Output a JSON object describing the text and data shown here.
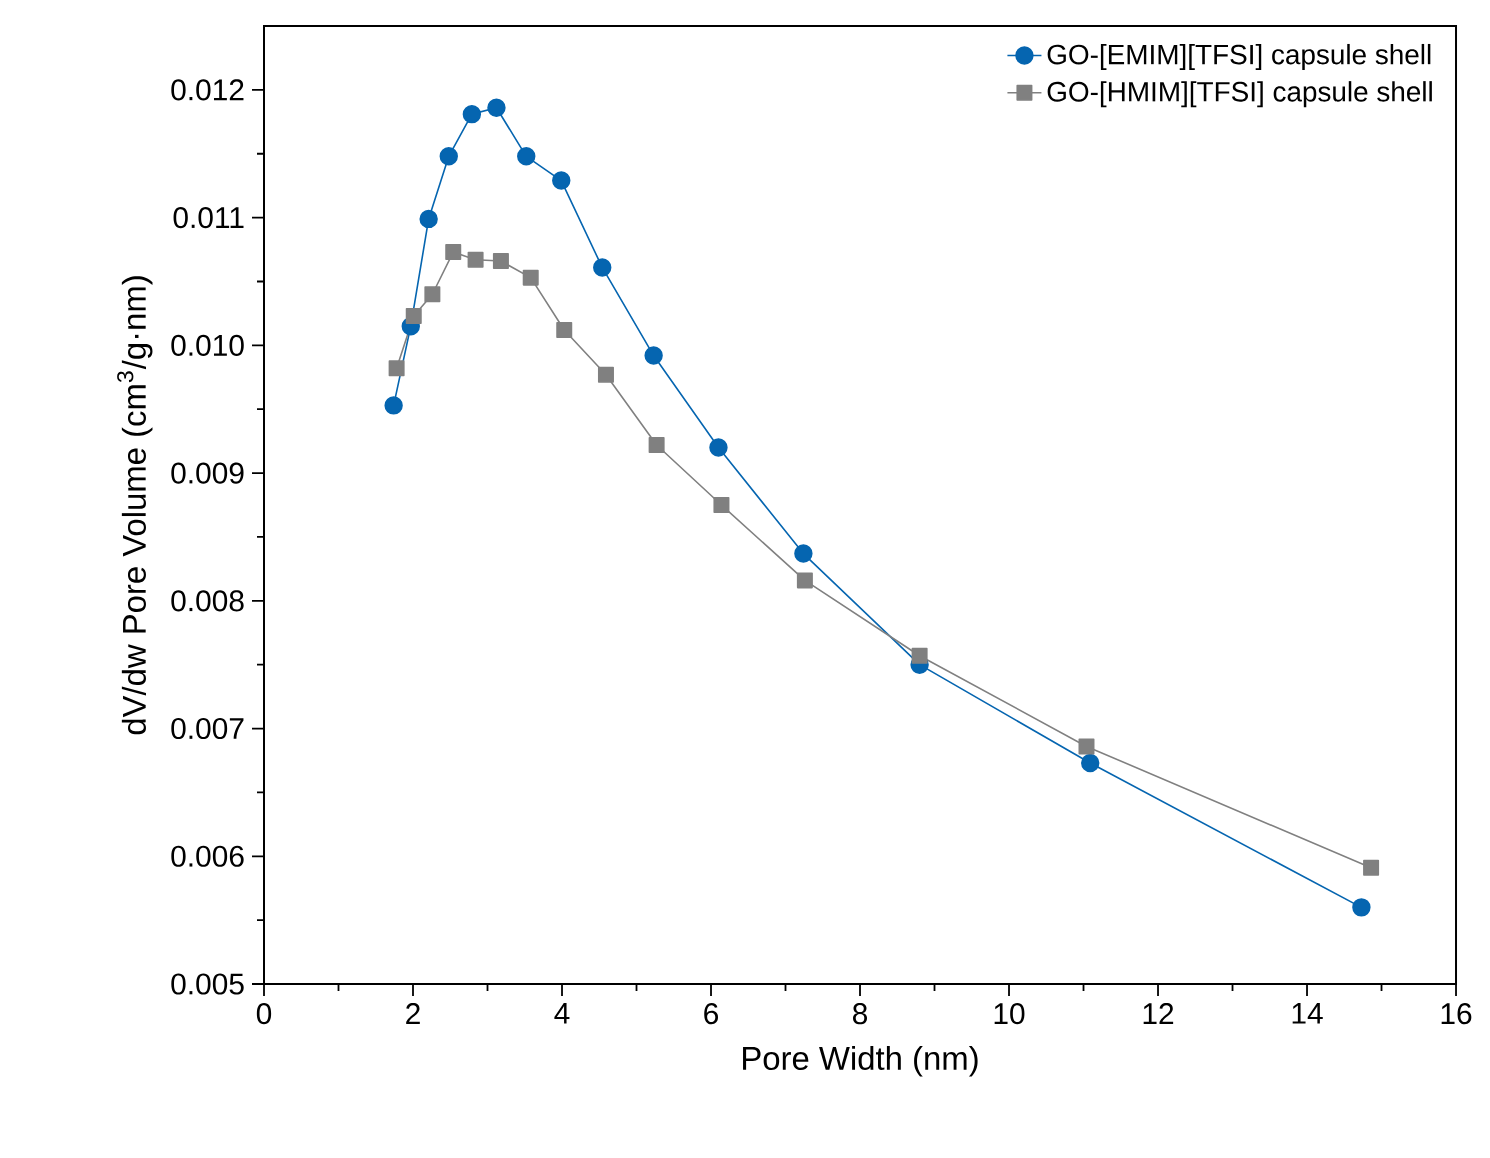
{
  "chart_data": {
    "type": "line",
    "xlabel": "Pore Width (nm)",
    "ylabel": "dV/dw Pore Volume (cm$^{3}$/g·nm)",
    "xlim": [
      0,
      16
    ],
    "xticks": [
      0,
      2,
      4,
      6,
      8,
      10,
      12,
      14,
      16
    ],
    "ylim": [
      0.005,
      0.0125
    ],
    "yticks": [
      0.005,
      0.006,
      0.007,
      0.008,
      0.009,
      {
        "value": 0.01,
        "label": "0.010"
      },
      0.011,
      0.012
    ],
    "grid": false,
    "legend": "top right",
    "series": [
      {
        "name": "GO-[EMIM][TFSI] capsule shell",
        "color": "#0565b0",
        "marker": "circle",
        "x": [
          1.74,
          1.97,
          2.21,
          2.48,
          2.79,
          3.12,
          3.52,
          3.99,
          4.54,
          5.23,
          6.1,
          7.24,
          8.8,
          11.09,
          14.73
        ],
        "values": [
          0.00953,
          0.01015,
          0.01099,
          0.01148,
          0.01181,
          0.01186,
          0.01148,
          0.01129,
          0.01061,
          0.00992,
          0.0092,
          0.00837,
          0.0075,
          0.00673,
          0.0056
        ]
      },
      {
        "name": "GO-[HMIM][TFSI] capsule shell",
        "color": "#808080",
        "marker": "square",
        "x": [
          1.78,
          2.01,
          2.26,
          2.54,
          2.84,
          3.18,
          3.58,
          4.03,
          4.59,
          5.27,
          6.14,
          7.26,
          8.8,
          11.04,
          14.86
        ],
        "values": [
          0.00982,
          0.01023,
          0.0104,
          0.01073,
          0.01067,
          0.01066,
          0.01053,
          0.01012,
          0.00977,
          0.00922,
          0.00875,
          0.00816,
          0.00757,
          0.00686,
          0.00591
        ]
      }
    ]
  }
}
